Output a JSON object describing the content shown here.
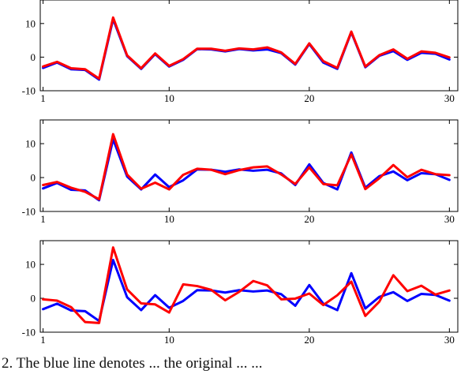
{
  "caption": "2. The blue line denotes ... the original ... ...",
  "colors": {
    "series_a": "#0000ff",
    "series_b": "#ff0000",
    "axes": "#000000",
    "background": "#ffffff"
  },
  "chart_data": [
    {
      "type": "line",
      "x": [
        1,
        2,
        3,
        4,
        5,
        6,
        7,
        8,
        9,
        10,
        11,
        12,
        13,
        14,
        15,
        16,
        17,
        18,
        19,
        20,
        21,
        22,
        23,
        24,
        25,
        26,
        27,
        28,
        29,
        30
      ],
      "xlim": [
        0.8,
        30.6
      ],
      "ylim": [
        -10,
        17
      ],
      "xticks": [
        1,
        10,
        20,
        30
      ],
      "yticks": [
        -10,
        0,
        10
      ],
      "grid": false,
      "series": [
        {
          "color": "#0000ff",
          "values": [
            -3.2,
            -1.6,
            -3.6,
            -3.8,
            -6.7,
            11.3,
            0.3,
            -3.5,
            0.9,
            -2.8,
            -0.8,
            2.4,
            2.3,
            1.7,
            2.4,
            2.0,
            2.3,
            1.2,
            -2.2,
            3.9,
            -1.6,
            -3.5,
            7.4,
            -3.0,
            0.4,
            1.8,
            -0.8,
            1.3,
            1.0,
            -0.7
          ]
        },
        {
          "color": "#ff0000",
          "values": [
            -2.8,
            -1.4,
            -3.3,
            -3.6,
            -6.4,
            11.8,
            0.5,
            -3.3,
            1.1,
            -2.6,
            -0.6,
            2.5,
            2.5,
            1.9,
            2.6,
            2.3,
            2.9,
            1.4,
            -2.0,
            4.1,
            -1.2,
            -3.2,
            7.6,
            -2.8,
            0.6,
            2.3,
            -0.5,
            1.7,
            1.3,
            -0.1
          ]
        }
      ]
    },
    {
      "type": "line",
      "x": [
        1,
        2,
        3,
        4,
        5,
        6,
        7,
        8,
        9,
        10,
        11,
        12,
        13,
        14,
        15,
        16,
        17,
        18,
        19,
        20,
        21,
        22,
        23,
        24,
        25,
        26,
        27,
        28,
        29,
        30
      ],
      "xlim": [
        0.8,
        30.6
      ],
      "ylim": [
        -10,
        17
      ],
      "xticks": [
        1,
        10,
        20,
        30
      ],
      "yticks": [
        -10,
        0,
        10
      ],
      "grid": false,
      "series": [
        {
          "color": "#0000ff",
          "values": [
            -3.2,
            -1.6,
            -3.6,
            -3.8,
            -6.7,
            11.3,
            0.3,
            -3.5,
            0.9,
            -2.8,
            -0.8,
            2.4,
            2.3,
            1.7,
            2.4,
            2.0,
            2.3,
            1.2,
            -2.2,
            3.9,
            -1.6,
            -3.5,
            7.4,
            -3.0,
            0.4,
            1.8,
            -0.8,
            1.3,
            1.0,
            -0.7
          ]
        },
        {
          "color": "#ff0000",
          "values": [
            -2.2,
            -1.3,
            -3.0,
            -4.2,
            -6.4,
            12.8,
            0.9,
            -3.3,
            -1.5,
            -3.5,
            0.8,
            2.6,
            2.3,
            1.0,
            2.2,
            3.0,
            3.3,
            0.9,
            -1.9,
            3.0,
            -1.9,
            -2.3,
            6.8,
            -3.4,
            -0.2,
            3.7,
            0.1,
            2.3,
            1.0,
            0.7
          ]
        }
      ]
    },
    {
      "type": "line",
      "x": [
        1,
        2,
        3,
        4,
        5,
        6,
        7,
        8,
        9,
        10,
        11,
        12,
        13,
        14,
        15,
        16,
        17,
        18,
        19,
        20,
        21,
        22,
        23,
        24,
        25,
        26,
        27,
        28,
        29,
        30
      ],
      "xlim": [
        0.8,
        30.6
      ],
      "ylim": [
        -10,
        17
      ],
      "xticks": [
        1,
        10,
        20,
        30
      ],
      "yticks": [
        -10,
        0,
        10
      ],
      "grid": false,
      "series": [
        {
          "color": "#0000ff",
          "values": [
            -3.2,
            -1.6,
            -3.6,
            -3.8,
            -6.7,
            11.3,
            0.3,
            -3.5,
            0.9,
            -2.8,
            -0.8,
            2.4,
            2.3,
            1.7,
            2.4,
            2.0,
            2.3,
            1.2,
            -2.2,
            3.9,
            -1.6,
            -3.5,
            7.4,
            -3.0,
            0.4,
            1.8,
            -0.8,
            1.3,
            1.0,
            -0.7
          ]
        },
        {
          "color": "#ff0000",
          "values": [
            -0.3,
            -0.7,
            -2.6,
            -7.0,
            -7.3,
            15.0,
            2.6,
            -1.5,
            -1.8,
            -4.2,
            4.1,
            3.6,
            2.5,
            -0.6,
            1.9,
            5.1,
            3.8,
            -0.3,
            -0.1,
            1.4,
            -2.0,
            0.9,
            4.9,
            -5.2,
            -1.0,
            6.8,
            2.1,
            3.7,
            1.1,
            2.3
          ]
        }
      ]
    }
  ]
}
